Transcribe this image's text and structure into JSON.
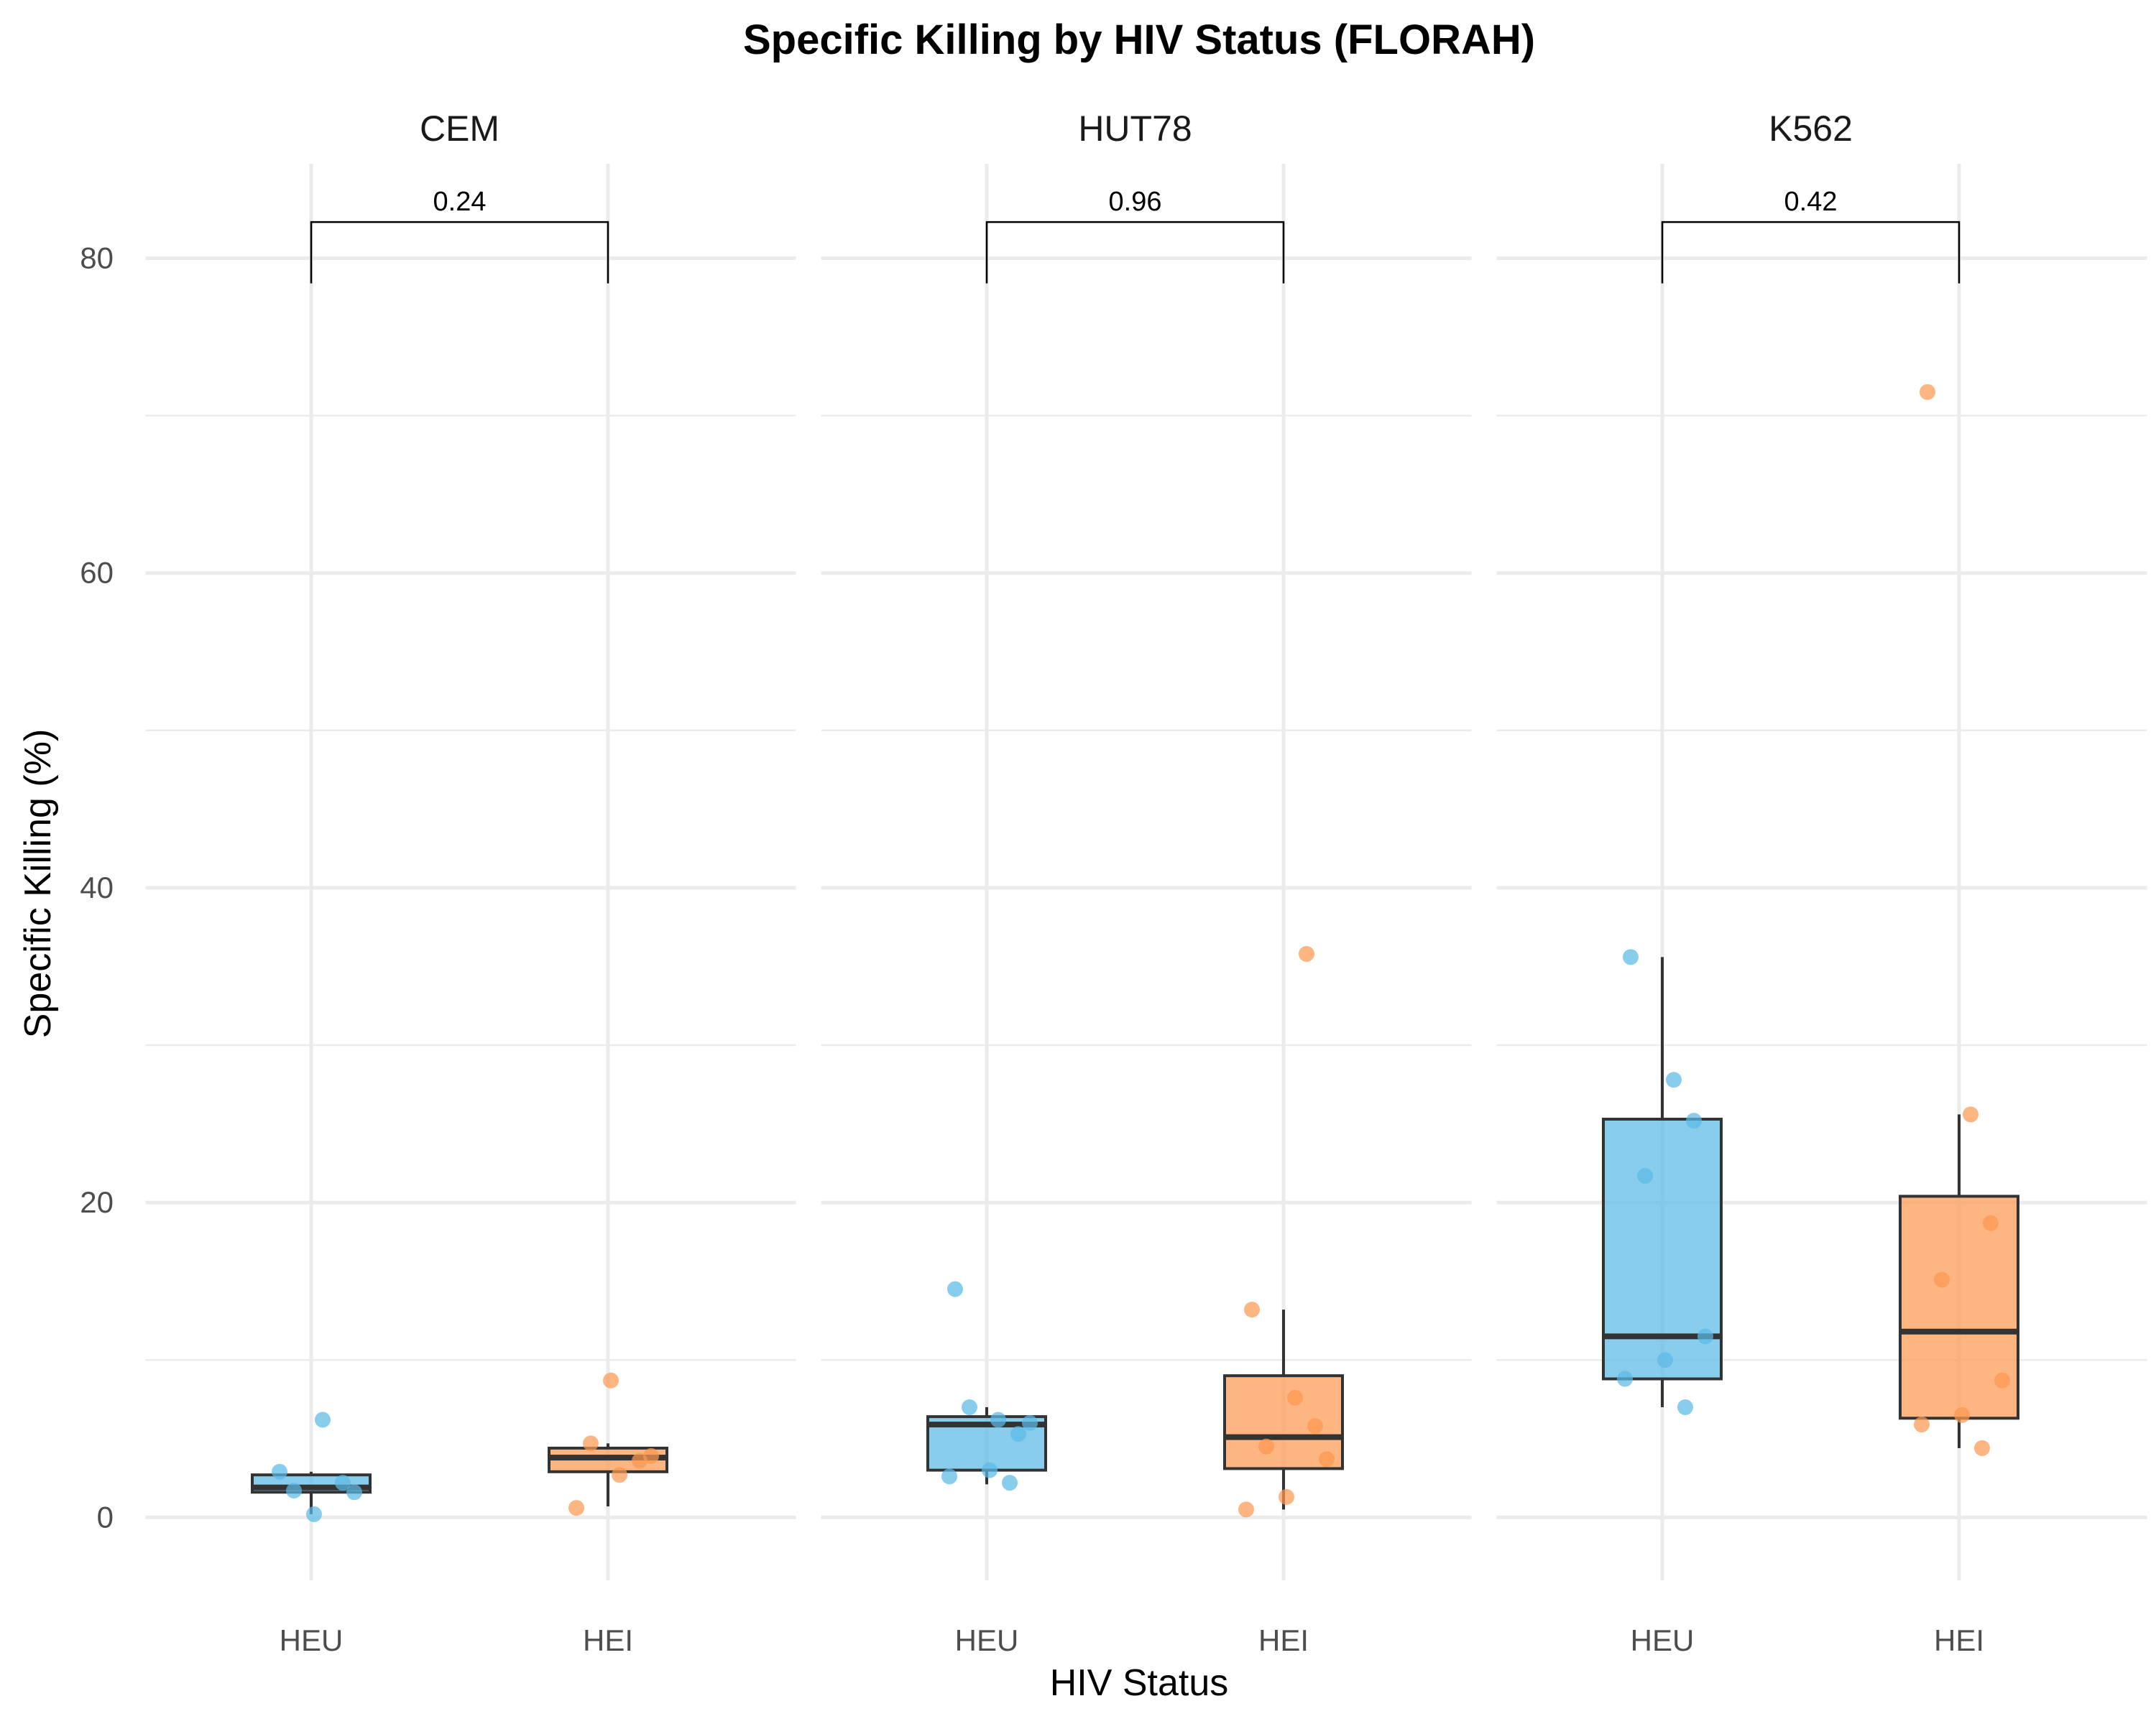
{
  "chart_data": {
    "type": "box",
    "title": "Specific Killing by HIV Status (FLORAH)",
    "xlabel": "HIV Status",
    "ylabel": "Specific Killing (%)",
    "ylim": [
      -4,
      86
    ],
    "yticks": [
      0,
      20,
      40,
      60,
      80
    ],
    "categories": [
      "HEU",
      "HEI"
    ],
    "colors": {
      "HEU": "#5BBAE6",
      "HEI": "#FC9950"
    },
    "grid": true,
    "legend": "none",
    "panels": [
      {
        "name": "CEM",
        "p_value": "0.24",
        "groups": [
          {
            "name": "HEU",
            "box": {
              "lower_whisker": 0.2,
              "q1": 1.6,
              "median": 1.9,
              "q3": 2.7,
              "upper_whisker": 2.9
            },
            "points": [
              2.9,
              6.2,
              2.2,
              1.7,
              1.6,
              0.2
            ]
          },
          {
            "name": "HEI",
            "box": {
              "lower_whisker": 0.7,
              "q1": 2.9,
              "median": 3.8,
              "q3": 4.4,
              "upper_whisker": 4.7
            },
            "points": [
              0.6,
              2.7,
              3.6,
              4.7,
              3.9,
              8.7
            ]
          }
        ]
      },
      {
        "name": "HUT78",
        "p_value": "0.96",
        "groups": [
          {
            "name": "HEU",
            "box": {
              "lower_whisker": 2.1,
              "q1": 3.0,
              "median": 5.9,
              "q3": 6.4,
              "upper_whisker": 7.0
            },
            "points": [
              14.5,
              6.2,
              5.3,
              7.0,
              6.0,
              3.0,
              2.6,
              2.2
            ]
          },
          {
            "name": "HEI",
            "box": {
              "lower_whisker": 0.5,
              "q1": 3.1,
              "median": 5.1,
              "q3": 9.0,
              "upper_whisker": 13.2
            },
            "points": [
              13.2,
              7.6,
              5.8,
              4.5,
              3.7,
              1.3,
              0.5,
              35.8
            ]
          }
        ]
      },
      {
        "name": "K562",
        "p_value": "0.42",
        "groups": [
          {
            "name": "HEU",
            "box": {
              "lower_whisker": 7.0,
              "q1": 8.8,
              "median": 11.5,
              "q3": 25.3,
              "upper_whisker": 35.6
            },
            "points": [
              35.6,
              27.8,
              25.2,
              21.7,
              11.5,
              10.0,
              8.8,
              7.0
            ]
          },
          {
            "name": "HEI",
            "box": {
              "lower_whisker": 4.4,
              "q1": 6.3,
              "median": 11.8,
              "q3": 20.4,
              "upper_whisker": 25.6
            },
            "points": [
              71.5,
              25.6,
              18.7,
              15.1,
              8.7,
              6.5,
              5.9,
              4.4
            ]
          }
        ]
      }
    ]
  }
}
